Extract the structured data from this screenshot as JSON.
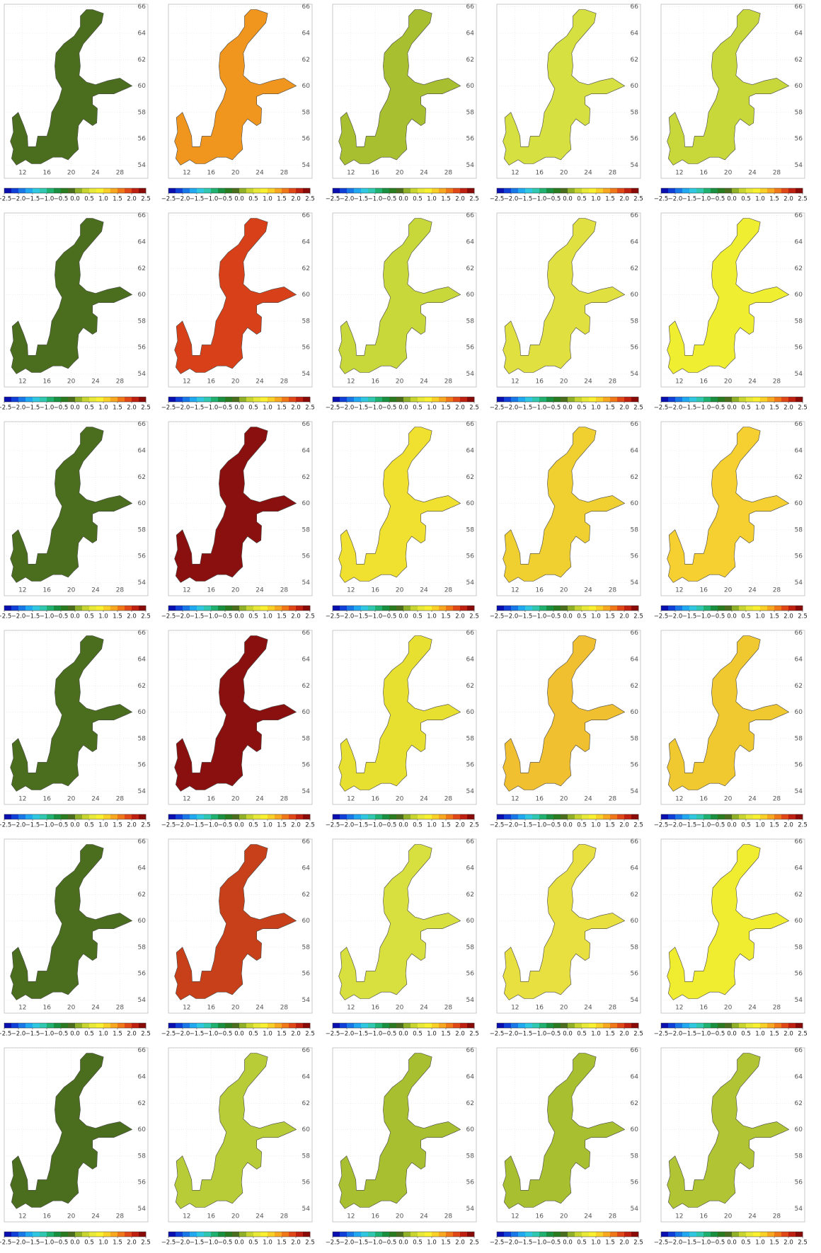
{
  "xlim": [
    9,
    32.6
  ],
  "ylim": [
    53,
    66.2
  ],
  "lon_ticks": [
    12,
    16,
    20,
    24,
    28
  ],
  "lat_ticks": [
    54,
    56,
    58,
    60,
    62,
    64,
    66
  ],
  "colorbar": {
    "ticks": [
      {
        "value": -2.5,
        "label": "−2.5"
      },
      {
        "value": -2.0,
        "label": "−2.0"
      },
      {
        "value": -1.5,
        "label": "−1.5"
      },
      {
        "value": -1.0,
        "label": "−1.0"
      },
      {
        "value": -0.5,
        "label": "−0.5"
      },
      {
        "value": 0,
        "label": "0.0"
      },
      {
        "value": 0.5,
        "label": "0.5"
      },
      {
        "value": 1.0,
        "label": "1.0"
      },
      {
        "value": 1.5,
        "label": "1.5"
      },
      {
        "value": 2.0,
        "label": "2.0"
      },
      {
        "value": 2.5,
        "label": "2.5"
      }
    ],
    "colors": [
      "#0a10b0",
      "#1040d8",
      "#1878e8",
      "#20a8f0",
      "#30c8e0",
      "#30c8b0",
      "#20b070",
      "#189040",
      "#2a7a20",
      "#4a6e1e",
      "#90b028",
      "#c8d430",
      "#e8e838",
      "#f8f030",
      "#f8d028",
      "#f8a820",
      "#f07818",
      "#e04818",
      "#c02010",
      "#8a0a08"
    ]
  },
  "panels": [
    [
      "#4a6e1e",
      "#f0961e",
      "#a8c030",
      "#d6e040",
      "#c8d83a"
    ],
    [
      "#4a6e1e",
      "#d8401a",
      "#c8d83a",
      "#e0e040",
      "#f0ee30"
    ],
    [
      "#4a6e1e",
      "#8a1010",
      "#f0e030",
      "#f0d030",
      "#f5d030"
    ],
    [
      "#4a6e1e",
      "#8a1010",
      "#e8e030",
      "#f0c030",
      "#f0c830"
    ],
    [
      "#4a6e1e",
      "#c8401a",
      "#d8e040",
      "#e8e040",
      "#f0ec30"
    ],
    [
      "#4a6e1e",
      "#b8cc38",
      "#a8c030",
      "#a8c030",
      "#b0c434"
    ]
  ]
}
